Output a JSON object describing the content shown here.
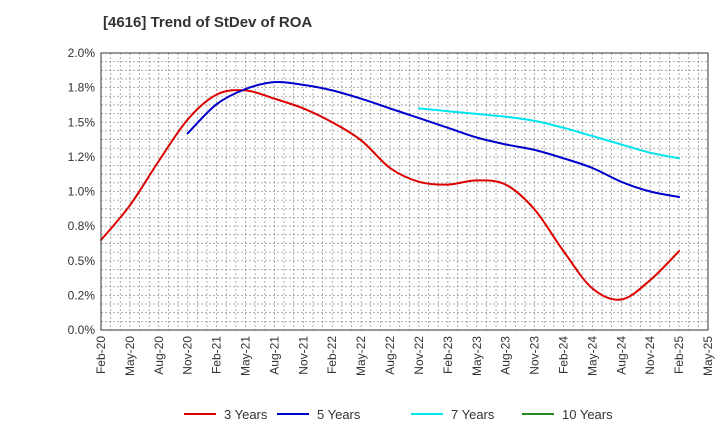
{
  "chart_data": {
    "type": "line",
    "title": "[4616]  Trend of StDev of ROA",
    "xlabel": "",
    "ylabel": "",
    "categories": [
      "Feb-20",
      "May-20",
      "Aug-20",
      "Nov-20",
      "Feb-21",
      "May-21",
      "Aug-21",
      "Nov-21",
      "Feb-22",
      "May-22",
      "Aug-22",
      "Nov-22",
      "Feb-23",
      "May-23",
      "Aug-23",
      "Nov-23",
      "Feb-24",
      "May-24",
      "Aug-24",
      "Nov-24",
      "Feb-25",
      "May-25"
    ],
    "y_ticks": [
      "0.0%",
      "0.2%",
      "0.5%",
      "0.8%",
      "1.0%",
      "1.2%",
      "1.5%",
      "1.8%",
      "2.0%"
    ],
    "ylim": [
      0,
      2.0
    ],
    "grid": true,
    "legend_position": "bottom",
    "series": [
      {
        "name": "3 Years",
        "color": "#dd0000",
        "values": [
          0.65,
          0.9,
          1.22,
          1.52,
          1.7,
          1.73,
          1.67,
          1.6,
          1.5,
          1.37,
          1.17,
          1.07,
          1.05,
          1.08,
          1.05,
          0.87,
          0.57,
          0.3,
          0.22,
          0.36,
          0.57,
          null
        ]
      },
      {
        "name": "5 Years",
        "color": "#0000cc",
        "values": [
          null,
          null,
          null,
          1.42,
          1.63,
          1.74,
          1.79,
          1.77,
          1.73,
          1.67,
          1.6,
          1.53,
          1.46,
          1.39,
          1.34,
          1.3,
          1.24,
          1.17,
          1.07,
          1.0,
          0.96,
          null
        ]
      },
      {
        "name": "7 Years",
        "color": "#00e5ee",
        "values": [
          null,
          null,
          null,
          null,
          null,
          null,
          null,
          null,
          null,
          null,
          null,
          1.6,
          1.58,
          1.56,
          1.54,
          1.51,
          1.46,
          1.4,
          1.34,
          1.28,
          1.24,
          null
        ]
      },
      {
        "name": "10 Years",
        "color": "#228b22",
        "values": [
          null,
          null,
          null,
          null,
          null,
          null,
          null,
          null,
          null,
          null,
          null,
          null,
          null,
          null,
          null,
          null,
          null,
          null,
          null,
          null,
          null,
          null
        ]
      }
    ]
  }
}
